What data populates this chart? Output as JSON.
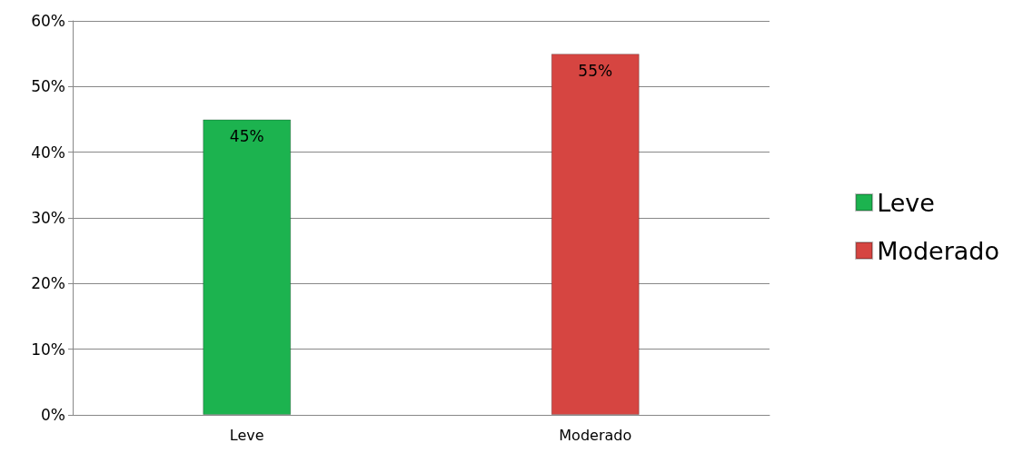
{
  "chart_data": {
    "type": "bar",
    "categories": [
      "Leve",
      "Moderado"
    ],
    "series": [
      {
        "name": "Leve",
        "color": "#1cb34f",
        "values": [
          45,
          null
        ],
        "value_labels": [
          "45%",
          null
        ]
      },
      {
        "name": "Moderado",
        "color": "#d64541",
        "values": [
          null,
          55
        ],
        "value_labels": [
          null,
          "55%"
        ]
      }
    ],
    "ylim": [
      0,
      60
    ],
    "yticks": [
      {
        "value": 0,
        "label": "0%"
      },
      {
        "value": 10,
        "label": "10%"
      },
      {
        "value": 20,
        "label": "20%"
      },
      {
        "value": 30,
        "label": "30%"
      },
      {
        "value": 40,
        "label": "40%"
      },
      {
        "value": 50,
        "label": "50%"
      },
      {
        "value": 60,
        "label": "60%"
      }
    ],
    "grid": "y",
    "legend": "right"
  }
}
